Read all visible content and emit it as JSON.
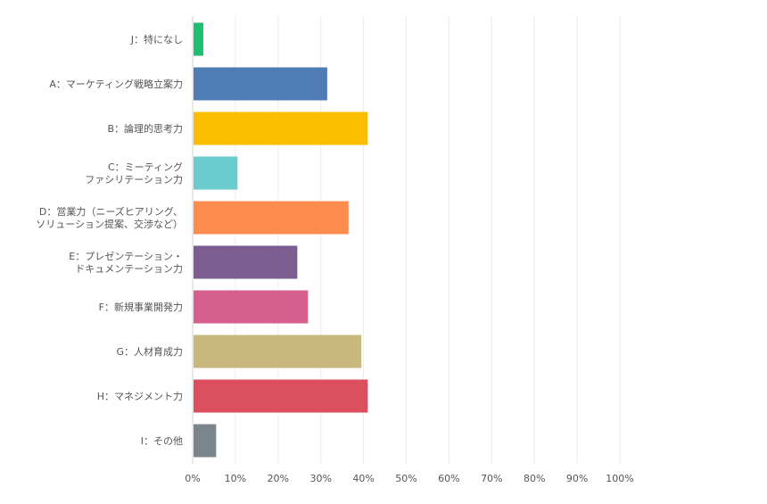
{
  "chart_data": {
    "type": "bar",
    "orientation": "horizontal",
    "categories": [
      [
        "J：特になし"
      ],
      [
        "A：マーケティング戦略立案力"
      ],
      [
        "B：論理的思考力"
      ],
      [
        "C：ミーティング",
        "ファシリテーション力"
      ],
      [
        "D：営業力（ニーズヒアリング、",
        "ソリューション提案、交渉など）"
      ],
      [
        "E：プレゼンテーション・",
        "ドキュメンテーション力"
      ],
      [
        "F：新規事業開発力"
      ],
      [
        "G：人材育成力"
      ],
      [
        "H：マネジメント力"
      ],
      [
        "I：その他"
      ]
    ],
    "values": [
      2.5,
      31.5,
      41,
      10.5,
      36.5,
      24.5,
      27,
      39.5,
      41,
      5.5
    ],
    "colors": [
      "#1ebe73",
      "#4f7cb4",
      "#fbbf00",
      "#6ccbcf",
      "#ff8c4f",
      "#7b5d91",
      "#d65f8d",
      "#c9b87b",
      "#dc4f5c",
      "#7a858c"
    ],
    "xlim": [
      0,
      100
    ],
    "x_ticks": [
      "0%",
      "10%",
      "20%",
      "30%",
      "40%",
      "50%",
      "60%",
      "70%",
      "80%",
      "90%",
      "100%"
    ],
    "grid": true,
    "title": "",
    "xlabel": "",
    "ylabel": ""
  }
}
